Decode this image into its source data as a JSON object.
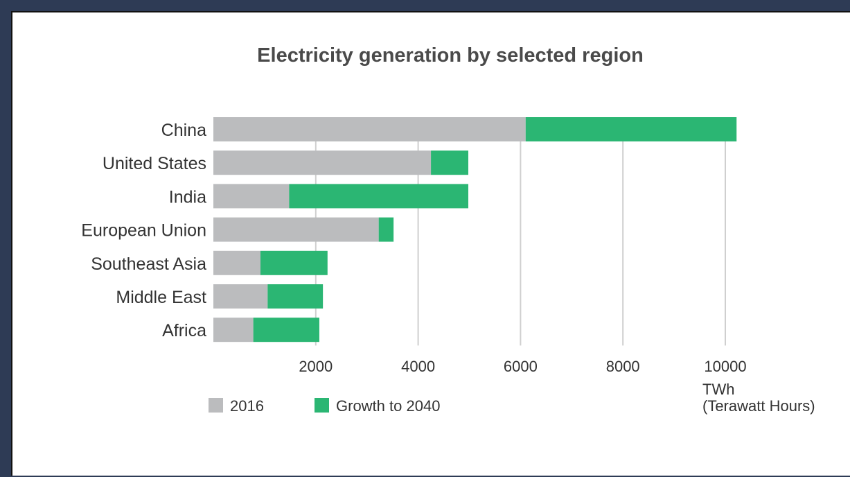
{
  "chart_data": {
    "type": "bar",
    "orientation": "horizontal",
    "stacked": true,
    "title": "Electricity generation by selected region",
    "categories": [
      "China",
      "United States",
      "India",
      "European Union",
      "Southeast Asia",
      "Middle East",
      "Africa"
    ],
    "series": [
      {
        "name": "2016",
        "color": "#bbbcbe",
        "values": [
          6100,
          4250,
          1480,
          3230,
          920,
          1060,
          780
        ]
      },
      {
        "name": "Growth to 2040",
        "color": "#2bb673",
        "values": [
          4120,
          730,
          3500,
          290,
          1310,
          1080,
          1290
        ]
      }
    ],
    "xlim": [
      0,
      10200
    ],
    "xticks": [
      2000,
      4000,
      6000,
      8000,
      10000
    ],
    "xlabel": "TWh",
    "xlabel_sub": "(Terawatt Hours)",
    "grid": true,
    "legend_position": "bottom-left"
  }
}
